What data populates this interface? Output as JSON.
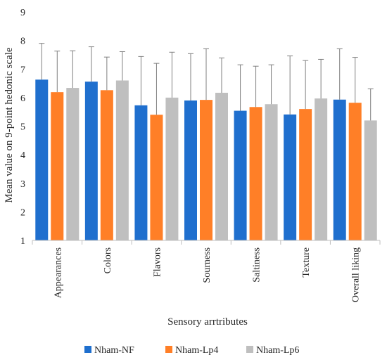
{
  "chart_data": {
    "type": "bar",
    "xlabel": "Sensory arrtributes",
    "ylabel": "Mean value on 9-point hedonic scale",
    "ylim": [
      1,
      9
    ],
    "yticks": [
      1,
      2,
      3,
      4,
      5,
      6,
      7,
      8,
      9
    ],
    "categories": [
      "Appearances",
      "Colors",
      "Flavors",
      "Sourness",
      "Saltiness",
      "Texture",
      "Overall liking"
    ],
    "series": [
      {
        "name": "Nham-NF",
        "color": "#1f6fce",
        "values": [
          6.63,
          6.56,
          5.73,
          5.9,
          5.54,
          5.41,
          5.93
        ],
        "error": [
          1.27,
          1.22,
          1.71,
          1.64,
          1.61,
          2.05,
          1.78
        ]
      },
      {
        "name": "Nham-Lp4",
        "color": "#ff7f27",
        "values": [
          6.19,
          6.26,
          5.4,
          5.92,
          5.67,
          5.6,
          5.82
        ],
        "error": [
          1.44,
          1.16,
          1.8,
          1.79,
          1.43,
          1.7,
          1.59
        ]
      },
      {
        "name": "Nham-Lp6",
        "color": "#bfbfbf",
        "values": [
          6.34,
          6.6,
          6.0,
          6.17,
          5.77,
          5.97,
          5.2
        ],
        "error": [
          1.3,
          1.01,
          1.59,
          1.22,
          1.38,
          1.37,
          1.11
        ]
      }
    ],
    "grid": false,
    "legend_position": "bottom"
  }
}
